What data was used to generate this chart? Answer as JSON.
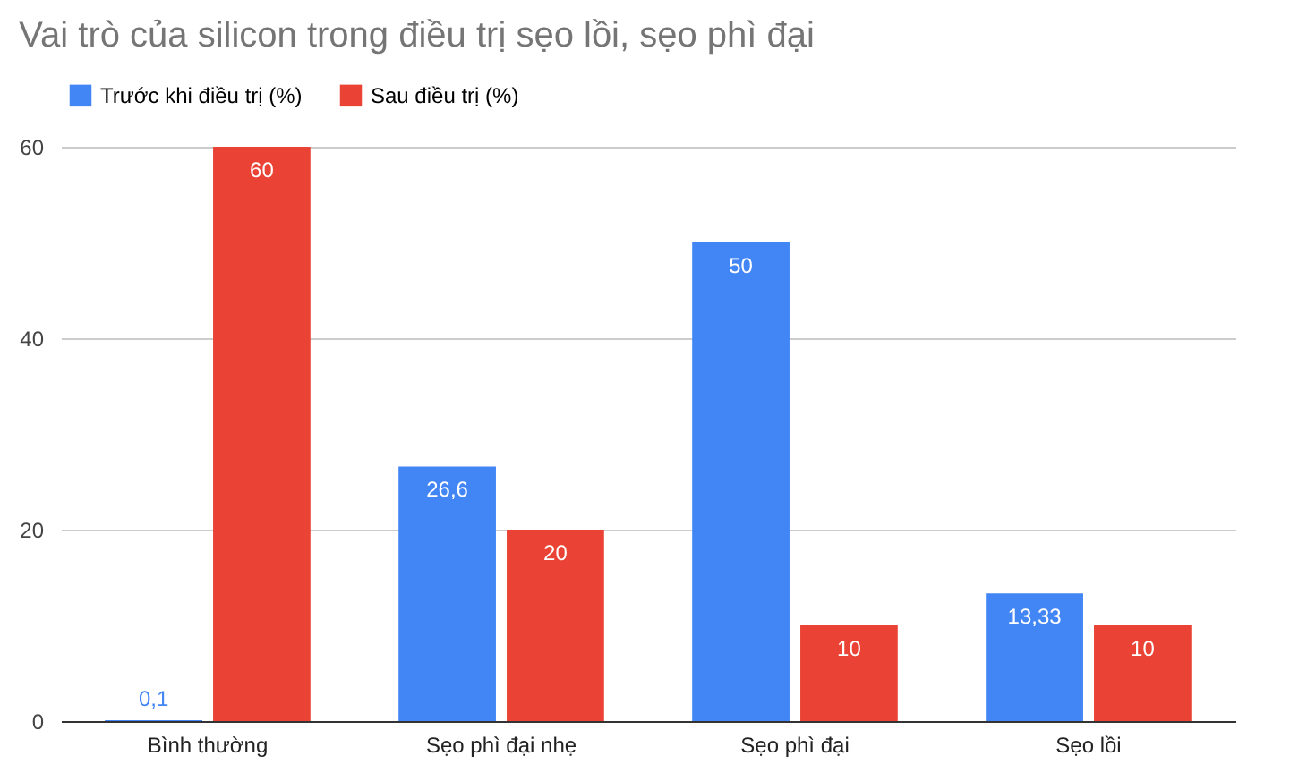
{
  "chart_data": {
    "type": "bar",
    "title": "Vai trò của silicon trong điều trị sẹo lồi, sẹo phì đại",
    "categories": [
      "Bình thường",
      "Sẹo phì đại nhẹ",
      "Sẹo phì đại",
      "Sẹo lồi"
    ],
    "series": [
      {
        "name": "Trước khi điều trị (%)",
        "color": "#4285f4",
        "values": [
          0.1,
          26.6,
          50,
          13.33
        ],
        "value_labels": [
          "0,1",
          "26,6",
          "50",
          "13,33"
        ]
      },
      {
        "name": "Sau điều trị (%)",
        "color": "#ea4335",
        "values": [
          60,
          20,
          10,
          10
        ],
        "value_labels": [
          "60",
          "20",
          "10",
          "10"
        ]
      }
    ],
    "ylim": [
      0,
      60
    ],
    "yticks": [
      0,
      20,
      40,
      60
    ],
    "grid": "y",
    "legend": "top"
  }
}
